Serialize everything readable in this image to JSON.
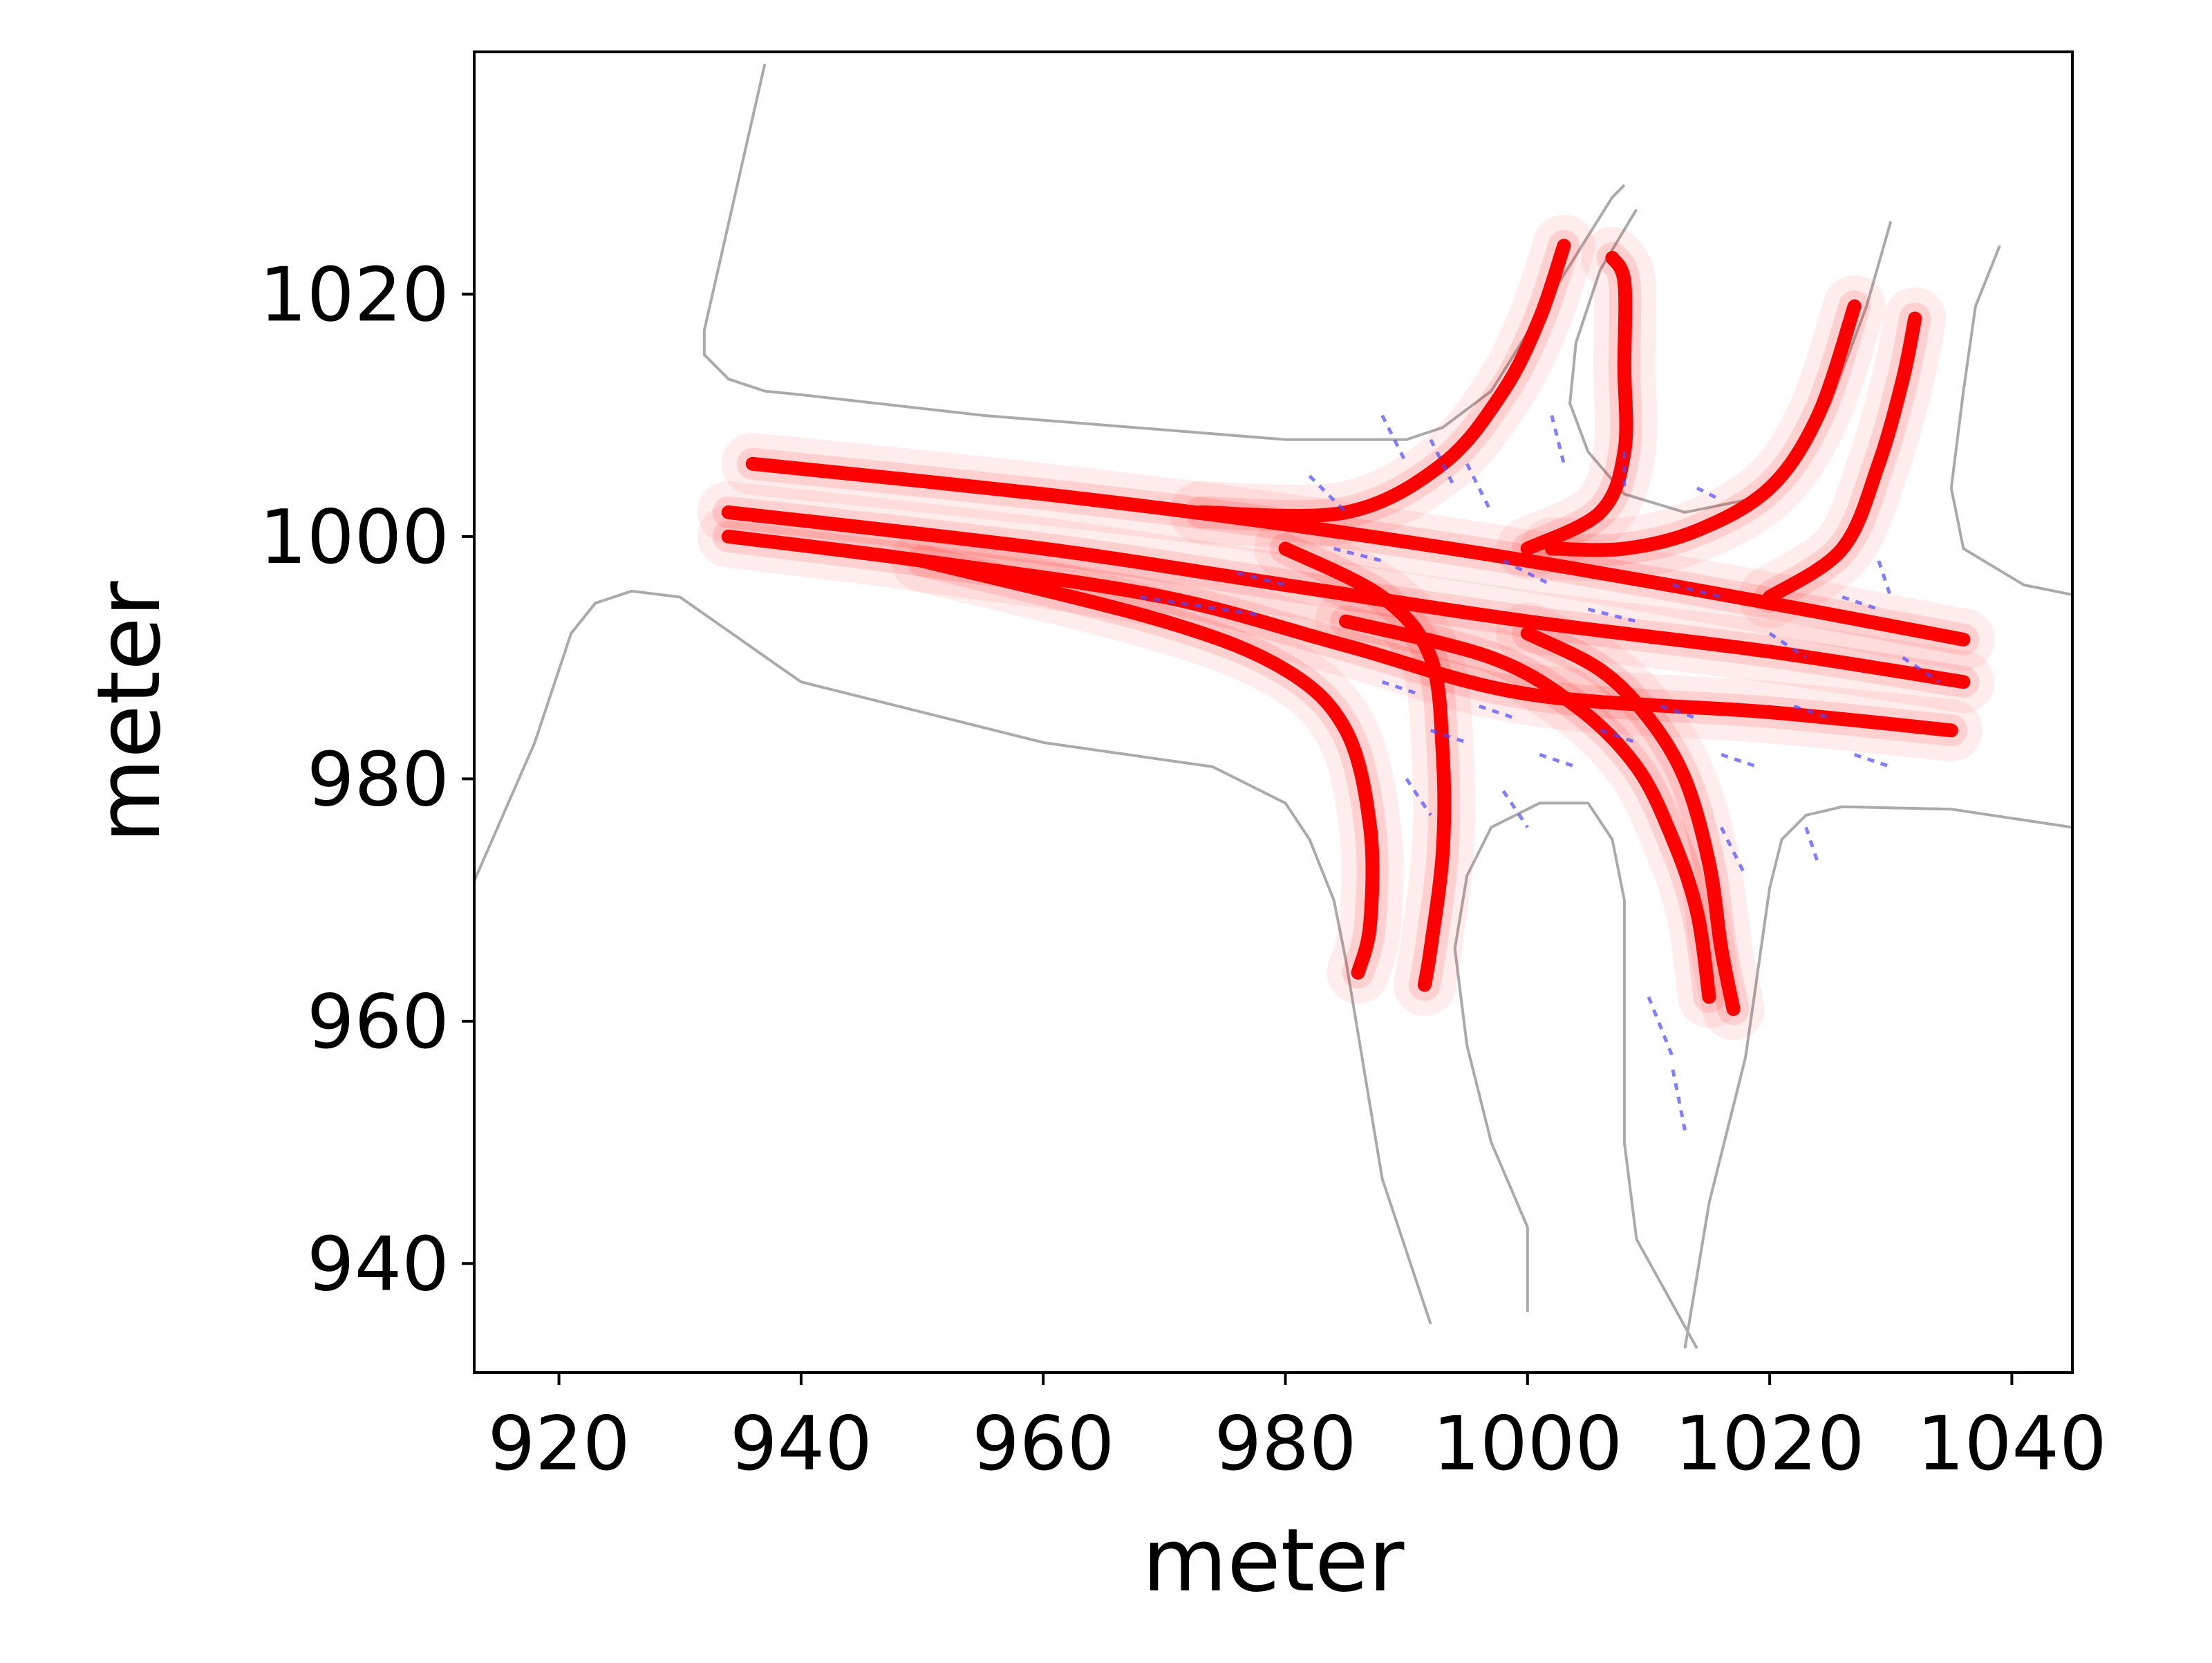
{
  "chart_data": {
    "type": "line",
    "title": "",
    "xlabel": "meter",
    "ylabel": "meter",
    "xlim": [
      913,
      1045
    ],
    "ylim": [
      931,
      1040
    ],
    "xticks": [
      920,
      940,
      960,
      980,
      1000,
      1020,
      1040
    ],
    "xtick_labels": [
      "920",
      "940",
      "960",
      "980",
      "1000",
      "1020",
      "1040"
    ],
    "yticks": [
      940,
      960,
      980,
      1000,
      1020
    ],
    "ytick_labels": [
      "940",
      "960",
      "980",
      "1000",
      "1020"
    ],
    "grid": false,
    "legend": null,
    "colors": {
      "road_boundary": "#aaaaaa",
      "trajectory": "#ff0000",
      "lane_marking": "#4a4aff",
      "axes": "#000000"
    },
    "series": [
      {
        "role": "road_boundary",
        "lines": [
          [
            [
              937,
              1039
            ],
            [
              932,
              1017
            ],
            [
              932,
              1015
            ],
            [
              934,
              1013
            ],
            [
              937,
              1012
            ],
            [
              940,
              1011.7
            ],
            [
              955,
              1010
            ],
            [
              980,
              1008
            ],
            [
              990,
              1008
            ],
            [
              993,
              1009
            ],
            [
              997,
              1012
            ],
            [
              1002,
              1020
            ],
            [
              1007,
              1028
            ],
            [
              1008,
              1029
            ]
          ],
          [
            [
              1009,
              1027
            ],
            [
              1006,
              1022
            ],
            [
              1004,
              1016
            ],
            [
              1003.5,
              1011
            ],
            [
              1005,
              1007
            ],
            [
              1008,
              1003.5
            ],
            [
              1013,
              1002
            ],
            [
              1018,
              1003
            ],
            [
              1022,
              1006
            ],
            [
              1025,
              1011
            ],
            [
              1028,
              1019
            ],
            [
              1030,
              1026
            ]
          ],
          [
            [
              1039,
              1024
            ],
            [
              1037,
              1019
            ],
            [
              1036,
              1012
            ],
            [
              1035,
              1004
            ],
            [
              1036,
              999
            ],
            [
              1041,
              996
            ],
            [
              1046,
              995
            ]
          ],
          [
            [
              1045,
              976
            ],
            [
              1035,
              977.5
            ],
            [
              1026,
              977.7
            ],
            [
              1023,
              977
            ],
            [
              1021,
              975
            ],
            [
              1020,
              971
            ],
            [
              1019,
              964
            ],
            [
              1018,
              957
            ],
            [
              1015,
              945
            ],
            [
              1013,
              933
            ]
          ],
          [
            [
              1014,
              933
            ],
            [
              1009,
              942
            ],
            [
              1008,
              950
            ],
            [
              1008,
              956
            ],
            [
              1008,
              964
            ],
            [
              1008,
              970
            ],
            [
              1007,
              975
            ],
            [
              1005,
              978
            ],
            [
              1001,
              978
            ],
            [
              997,
              976
            ],
            [
              995,
              972
            ],
            [
              994,
              966
            ],
            [
              995,
              958
            ],
            [
              997,
              950
            ],
            [
              1000,
              943
            ],
            [
              1000,
              936
            ]
          ],
          [
            [
              992,
              935
            ],
            [
              988,
              947
            ],
            [
              987,
              953
            ],
            [
              985,
              965
            ],
            [
              984,
              970
            ],
            [
              982,
              975
            ],
            [
              980,
              978
            ],
            [
              974,
              981
            ],
            [
              960,
              983
            ],
            [
              940,
              988
            ],
            [
              930,
              995
            ],
            [
              926,
              995.5
            ],
            [
              923,
              994.5
            ],
            [
              921,
              992
            ],
            [
              918,
              983
            ],
            [
              911,
              967
            ]
          ]
        ]
      },
      {
        "role": "trajectory",
        "paths": [
          [
            [
              936,
              1006
            ],
            [
              960,
              1003.5
            ],
            [
              980,
              1001
            ],
            [
              1000,
              998
            ],
            [
              1020,
              994.5
            ],
            [
              1036,
              991.5
            ]
          ],
          [
            [
              934,
              1002
            ],
            [
              960,
              999
            ],
            [
              980,
              996
            ],
            [
              1000,
              993
            ],
            [
              1020,
              990.5
            ],
            [
              1036,
              988
            ]
          ],
          [
            [
              934,
              1000
            ],
            [
              950,
              998
            ],
            [
              970,
              995
            ],
            [
              985,
              991
            ],
            [
              1000,
              987
            ],
            [
              1020,
              985.5
            ],
            [
              1035,
              984
            ]
          ],
          [
            [
              950,
              998
            ],
            [
              970,
              993
            ],
            [
              980,
              989
            ],
            [
              985,
              984
            ],
            [
              987,
              976
            ],
            [
              987,
              968
            ],
            [
              986,
              964
            ]
          ],
          [
            [
              980,
              999
            ],
            [
              988,
              995
            ],
            [
              992,
              990
            ],
            [
              993,
              982
            ],
            [
              993,
              974
            ],
            [
              992,
              966
            ],
            [
              991.5,
              963
            ]
          ],
          [
            [
              985,
              993
            ],
            [
              997,
              990
            ],
            [
              1004,
              986
            ],
            [
              1009,
              981
            ],
            [
              1012,
              975
            ],
            [
              1014,
              969
            ],
            [
              1015,
              962
            ]
          ],
          [
            [
              1000,
              992
            ],
            [
              1006,
              989
            ],
            [
              1010,
              985
            ],
            [
              1013,
              980
            ],
            [
              1015,
              973
            ],
            [
              1016,
              966
            ],
            [
              1017,
              961
            ]
          ],
          [
            [
              973,
              1002
            ],
            [
              985,
              1002
            ],
            [
              993,
              1006
            ],
            [
              998,
              1012
            ],
            [
              1001,
              1018
            ],
            [
              1003,
              1024
            ]
          ],
          [
            [
              1000,
              999
            ],
            [
              1006,
              1002
            ],
            [
              1008,
              1007
            ],
            [
              1008,
              1014
            ],
            [
              1008,
              1021
            ],
            [
              1007,
              1023
            ]
          ],
          [
            [
              1002,
              999
            ],
            [
              1008,
              999
            ],
            [
              1014,
              1000.5
            ],
            [
              1020,
              1004
            ],
            [
              1024,
              1010
            ],
            [
              1027,
              1019
            ]
          ],
          [
            [
              1020,
              995
            ],
            [
              1026,
              999
            ],
            [
              1029,
              1006
            ],
            [
              1031,
              1013
            ],
            [
              1032,
              1018
            ]
          ]
        ]
      },
      {
        "role": "lane_marking",
        "segments": [
          [
            [
              968,
              995
            ],
            [
              978,
              993.5
            ]
          ],
          [
            [
              982,
              1005
            ],
            [
              985,
              1002
            ]
          ],
          [
            [
              988,
              1010
            ],
            [
              990,
              1006
            ]
          ],
          [
            [
              992,
              1008
            ],
            [
              994,
              1004
            ]
          ],
          [
            [
              995,
              1006
            ],
            [
              997,
              1002
            ]
          ],
          [
            [
              1002,
              1010
            ],
            [
              1003,
              1006
            ]
          ],
          [
            [
              998,
              998
            ],
            [
              1002,
              996
            ]
          ],
          [
            [
              1005,
              994
            ],
            [
              1009,
              993
            ]
          ],
          [
            [
              1012,
              996
            ],
            [
              1016,
              995
            ]
          ],
          [
            [
              1020,
              992
            ],
            [
              1023,
              990
            ]
          ],
          [
            [
              1026,
              995
            ],
            [
              1029,
              994
            ]
          ],
          [
            [
              1031,
              990
            ],
            [
              1034,
              988
            ]
          ],
          [
            [
              988,
              988
            ],
            [
              991,
              987
            ]
          ],
          [
            [
              992,
              984
            ],
            [
              995,
              983
            ]
          ],
          [
            [
              996,
              986
            ],
            [
              999,
              985
            ]
          ],
          [
            [
              1001,
              982
            ],
            [
              1004,
              981
            ]
          ],
          [
            [
              1006,
              984
            ],
            [
              1009,
              983
            ]
          ],
          [
            [
              1011,
              986
            ],
            [
              1014,
              985
            ]
          ],
          [
            [
              1016,
              982
            ],
            [
              1019,
              981
            ]
          ],
          [
            [
              1022,
              986
            ],
            [
              1025,
              985
            ]
          ],
          [
            [
              1027,
              982
            ],
            [
              1030,
              981
            ]
          ],
          [
            [
              990,
              980
            ],
            [
              992,
              977
            ]
          ],
          [
            [
              998,
              979
            ],
            [
              1000,
              976
            ]
          ],
          [
            [
              1010,
              962
            ],
            [
              1012,
              957
            ]
          ],
          [
            [
              1012,
              956
            ],
            [
              1013,
              951
            ]
          ],
          [
            [
              1016,
              976
            ],
            [
              1018,
              972
            ]
          ],
          [
            [
              1023,
              976
            ],
            [
              1024,
              973
            ]
          ],
          [
            [
              976,
              997
            ],
            [
              980,
              996
            ]
          ],
          [
            [
              984,
              999
            ],
            [
              988,
              998
            ]
          ],
          [
            [
              1008,
              1007
            ],
            [
              1008,
              1004
            ]
          ],
          [
            [
              1014,
              1004
            ],
            [
              1016,
              1003
            ]
          ],
          [
            [
              1029,
              998
            ],
            [
              1030,
              995
            ]
          ]
        ]
      }
    ]
  }
}
